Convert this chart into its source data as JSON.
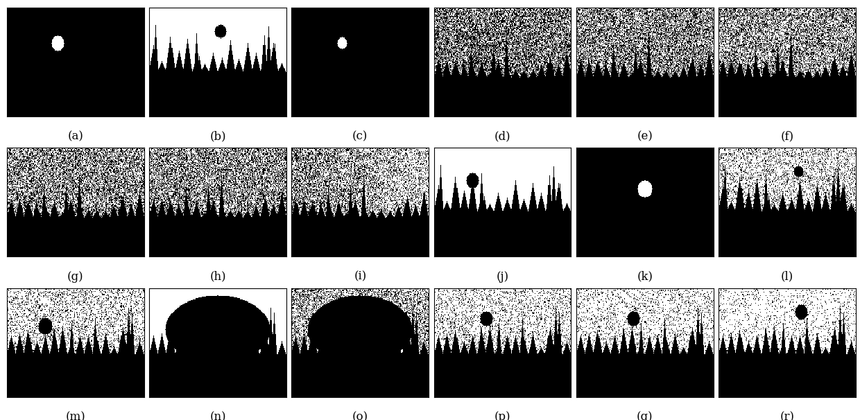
{
  "labels": [
    "(a)",
    "(b)",
    "(c)",
    "(d)",
    "(e)",
    "(f)",
    "(g)",
    "(h)",
    "(i)",
    "(j)",
    "(k)",
    "(l)",
    "(m)",
    "(n)",
    "(o)",
    "(p)",
    "(q)",
    "(r)"
  ],
  "grid_rows": 3,
  "grid_cols": 6,
  "bg_color": "#ffffff",
  "label_fontsize": 12
}
